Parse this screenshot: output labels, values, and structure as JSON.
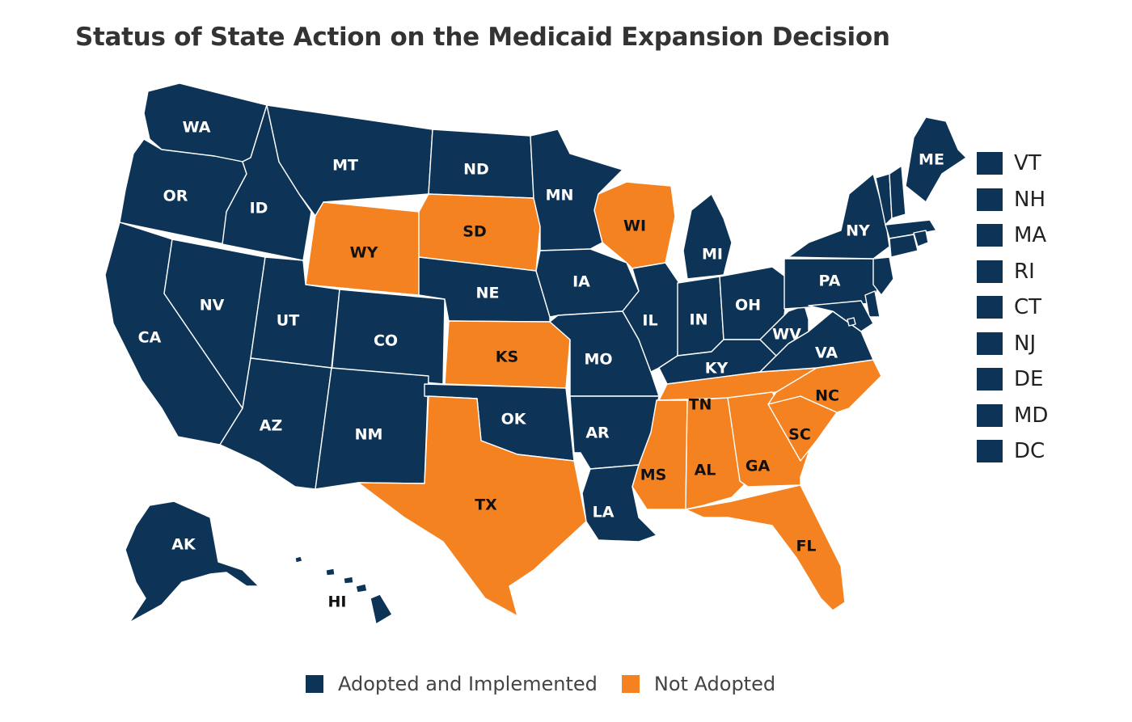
{
  "title": "Status of State Action on the Medicaid Expansion Decision",
  "colors": {
    "adopted": "#0d3457",
    "not_adopted": "#f58220"
  },
  "legend": [
    {
      "key": "adopted",
      "label": "Adopted and Implemented"
    },
    {
      "key": "not_adopted",
      "label": "Not Adopted"
    }
  ],
  "side_states": [
    "VT",
    "NH",
    "MA",
    "RI",
    "CT",
    "NJ",
    "DE",
    "MD",
    "DC"
  ],
  "states": {
    "WA": "adopted",
    "OR": "adopted",
    "CA": "adopted",
    "ID": "adopted",
    "NV": "adopted",
    "MT": "adopted",
    "WY": "not_adopted",
    "UT": "adopted",
    "CO": "adopted",
    "AZ": "adopted",
    "NM": "adopted",
    "ND": "adopted",
    "SD": "not_adopted",
    "NE": "adopted",
    "KS": "not_adopted",
    "OK": "adopted",
    "TX": "not_adopted",
    "MN": "adopted",
    "IA": "adopted",
    "MO": "adopted",
    "AR": "adopted",
    "LA": "adopted",
    "WI": "not_adopted",
    "IL": "adopted",
    "MI": "adopted",
    "IN": "adopted",
    "OH": "adopted",
    "KY": "adopted",
    "TN": "not_adopted",
    "MS": "not_adopted",
    "AL": "not_adopted",
    "GA": "not_adopted",
    "FL": "not_adopted",
    "SC": "not_adopted",
    "NC": "not_adopted",
    "VA": "adopted",
    "WV": "adopted",
    "PA": "adopted",
    "NY": "adopted",
    "ME": "adopted",
    "AK": "adopted",
    "HI": "adopted",
    "VT": "adopted",
    "NH": "adopted",
    "MA": "adopted",
    "RI": "adopted",
    "CT": "adopted",
    "NJ": "adopted",
    "DE": "adopted",
    "MD": "adopted",
    "DC": "adopted"
  }
}
